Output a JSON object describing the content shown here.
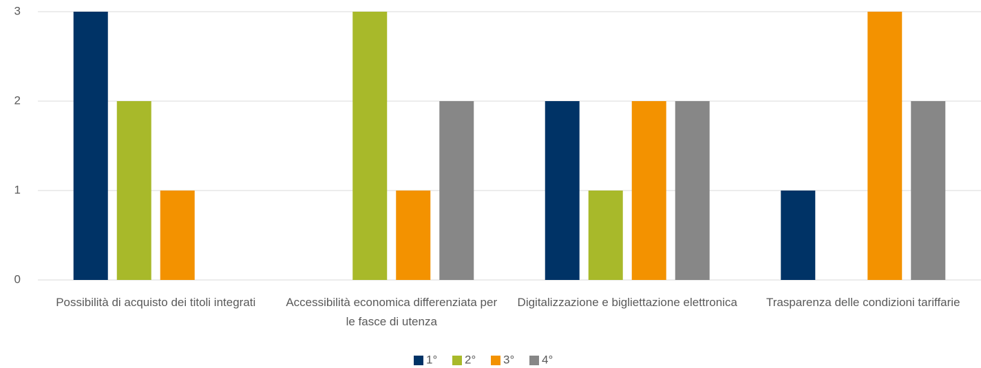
{
  "chart_data": {
    "type": "bar",
    "categories": [
      "Possibilità di acquisto dei titoli integrati",
      "Accessibilità economica differenziata per le fasce di utenza",
      "Digitalizzazione e bigliettazione elettronica",
      "Trasparenza delle condizioni tariffarie"
    ],
    "series": [
      {
        "name": "1°",
        "color": "#003366",
        "values": [
          3,
          0,
          2,
          1
        ]
      },
      {
        "name": "2°",
        "color": "#a8b92a",
        "values": [
          2,
          3,
          1,
          0
        ]
      },
      {
        "name": "3°",
        "color": "#f39200",
        "values": [
          1,
          1,
          2,
          3
        ]
      },
      {
        "name": "4°",
        "color": "#878787",
        "values": [
          0,
          2,
          2,
          2
        ]
      }
    ],
    "ylim": [
      0,
      3
    ],
    "yticks": [
      0,
      1,
      2,
      3
    ],
    "grid": true,
    "legend": "bottom"
  }
}
